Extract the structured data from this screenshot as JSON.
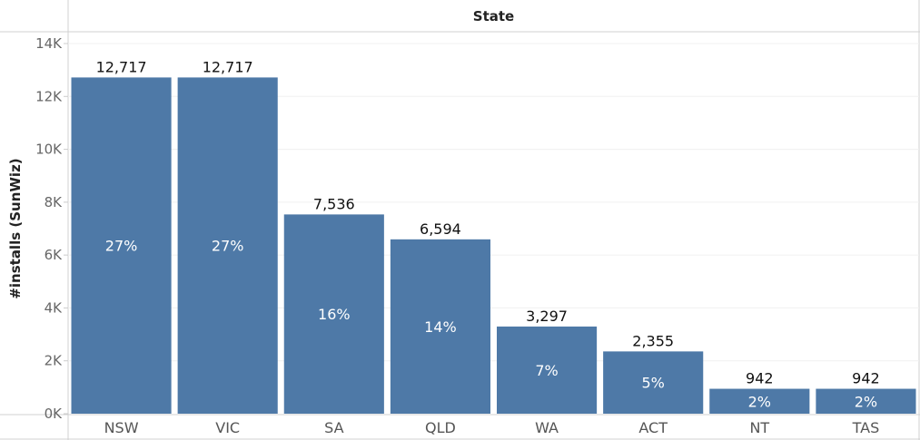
{
  "chart_data": {
    "type": "bar",
    "header": "State",
    "ylabel": "#installs (SunWiz)",
    "xlabel": "",
    "categories": [
      "NSW",
      "VIC",
      "SA",
      "QLD",
      "WA",
      "ACT",
      "NT",
      "TAS"
    ],
    "values": [
      12717,
      12717,
      7536,
      6594,
      3297,
      2355,
      942,
      942
    ],
    "value_labels": [
      "12,717",
      "12,717",
      "7,536",
      "6,594",
      "3,297",
      "2,355",
      "942",
      "942"
    ],
    "percent_labels": [
      "27%",
      "27%",
      "16%",
      "14%",
      "7%",
      "5%",
      "2%",
      "2%"
    ],
    "ylim": [
      0,
      14000
    ],
    "yticks": [
      0,
      2000,
      4000,
      6000,
      8000,
      10000,
      12000,
      14000
    ],
    "ytick_labels": [
      "0K",
      "2K",
      "4K",
      "6K",
      "8K",
      "10K",
      "12K",
      "14K"
    ],
    "grid": true,
    "bar_color": "#4e79a7"
  }
}
